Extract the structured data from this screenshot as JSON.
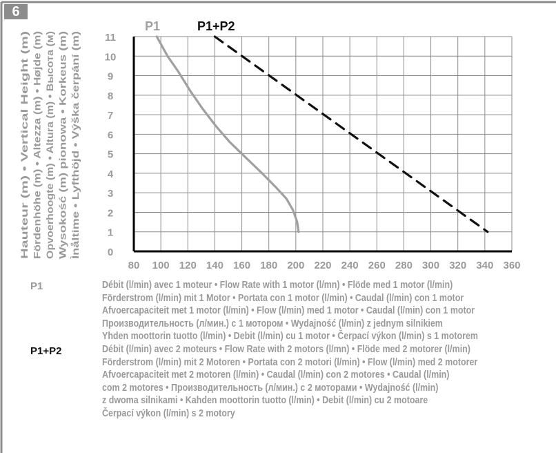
{
  "figure_number": "6",
  "colors": {
    "p1": "#a0a0a0",
    "p1p2": "#111111",
    "grid": "#8a8a8a",
    "text_gray": "#9a9a9a",
    "badge": "#8c8c8c"
  },
  "chart_data": {
    "type": "line",
    "title": "",
    "xlabel": "",
    "ylabel_lines": [
      "Hauteur (m) • Vertical Height (m)",
      "Fördenhöhe (m) • Altezza (m) • Højde (m)",
      "Opvoerhoogte (m) • Altura (m) • Высота (м)",
      "Wysokość (m) pionowa • Korkeus (m)",
      "Ìnåltime • Lyfthöjd • Výška čerpání (m)"
    ],
    "xlim": [
      80,
      360
    ],
    "ylim": [
      0,
      11
    ],
    "x_ticks": [
      "80",
      "100",
      "120",
      "140",
      "160",
      "180",
      "200",
      "220",
      "240",
      "260",
      "280",
      "300",
      "320",
      "340",
      "360"
    ],
    "y_ticks": [
      "0",
      "1",
      "2",
      "3",
      "4",
      "5",
      "6",
      "7",
      "8",
      "9",
      "10",
      "11"
    ],
    "grid": true,
    "legend_placement": "top",
    "series": [
      {
        "name": "P1",
        "style": "solid",
        "x": [
          97,
          105,
          113,
          122,
          131,
          141,
          151,
          163,
          175,
          185,
          193,
          198,
          201,
          202
        ],
        "y": [
          11,
          10,
          9.2,
          8.2,
          7.3,
          6.4,
          5.6,
          4.8,
          4,
          3.3,
          2.7,
          2.1,
          1.5,
          1
        ]
      },
      {
        "name": "P1+P2",
        "style": "dashed",
        "x": [
          140,
          342
        ],
        "y": [
          11,
          1
        ]
      }
    ]
  },
  "notes": {
    "p1_key": "P1",
    "p1_lines": [
      "Débit (l/min) avec 1 moteur • Flow Rate with 1 motor (l/mn) •  Flöde med 1 motor (l/min)",
      "Förderstrom (l/min) mit 1 Motor • Portata con 1 motor (l/min) • Caudal (l/min) con 1 motor",
      "Afvoercapaciteit met 1 motor (l/min) • Flow (l/min) med 1 motor • Caudal (l/min) con 1 motor",
      "Производительность (л/мин.) с 1 мотором • Wydajność (l/min) z jednym silnikiem",
      "Yhden moottorin tuotto (l/min) • Debit (l/min) cu 1 motor •  Čerpací výkon (l/min) s 1 motorem"
    ],
    "p1p2_key": "P1+P2",
    "p1p2_lines": [
      "Débit (l/min) avec 2 moteurs • Flow Rate with 2 motors (l/mn) • Flöde med 2 motorer (l/min)",
      "Förderstrom (l/min) mit 2 Motoren • Portata con 2 motori (l/min) • Flow (l/min) med 2 motorer",
      "Afvoercapaciteit met 2 motoren (l/min) • Caudal (l/min) con 2 motores • Caudal (l/min)",
      "com 2 motores • Производительность (л/мин.) с 2 моторами • Wydajność (l/min)",
      "z dwoma silnikami • Kahden moottorin tuotto (l/min) • Debit (l/min) cu 2 motoare",
      "Čerpací výkon (l/min) s 2 motory"
    ]
  }
}
